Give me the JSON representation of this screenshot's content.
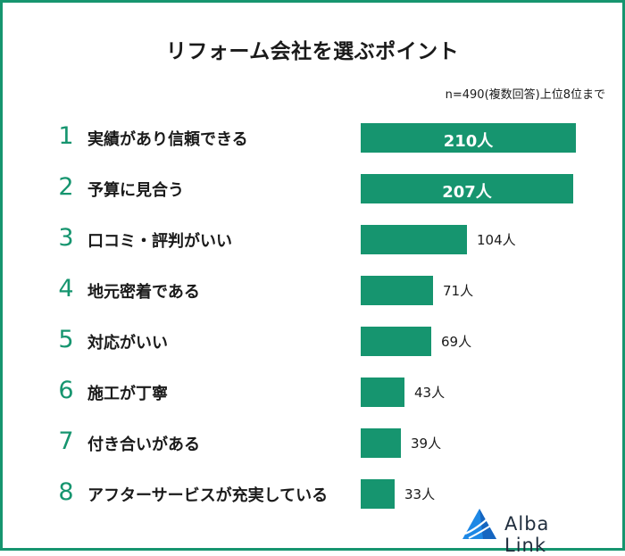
{
  "chart_data": {
    "type": "bar",
    "orientation": "horizontal",
    "title": "リフォーム会社を選ぶポイント",
    "note": "n=490(複数回答)上位8位まで",
    "bar_color": "#16956f",
    "rank_color": "#16956f",
    "categories": [
      "実績があり信頼できる",
      "予算に見合う",
      "口コミ・評判がいい",
      "地元密着である",
      "対応がいい",
      "施工が丁寧",
      "付き合いがある",
      "アフターサービスが充実している"
    ],
    "ranks": [
      "1",
      "2",
      "3",
      "4",
      "5",
      "6",
      "7",
      "8"
    ],
    "values": [
      210,
      207,
      104,
      71,
      69,
      43,
      39,
      33
    ],
    "value_labels": [
      "210人",
      "207人",
      "104人",
      "71人",
      "69人",
      "43人",
      "39人",
      "33人"
    ]
  },
  "brand": {
    "name": "Alba Link",
    "color": "#1e88e5",
    "icon": "alba-link-logo-icon"
  }
}
